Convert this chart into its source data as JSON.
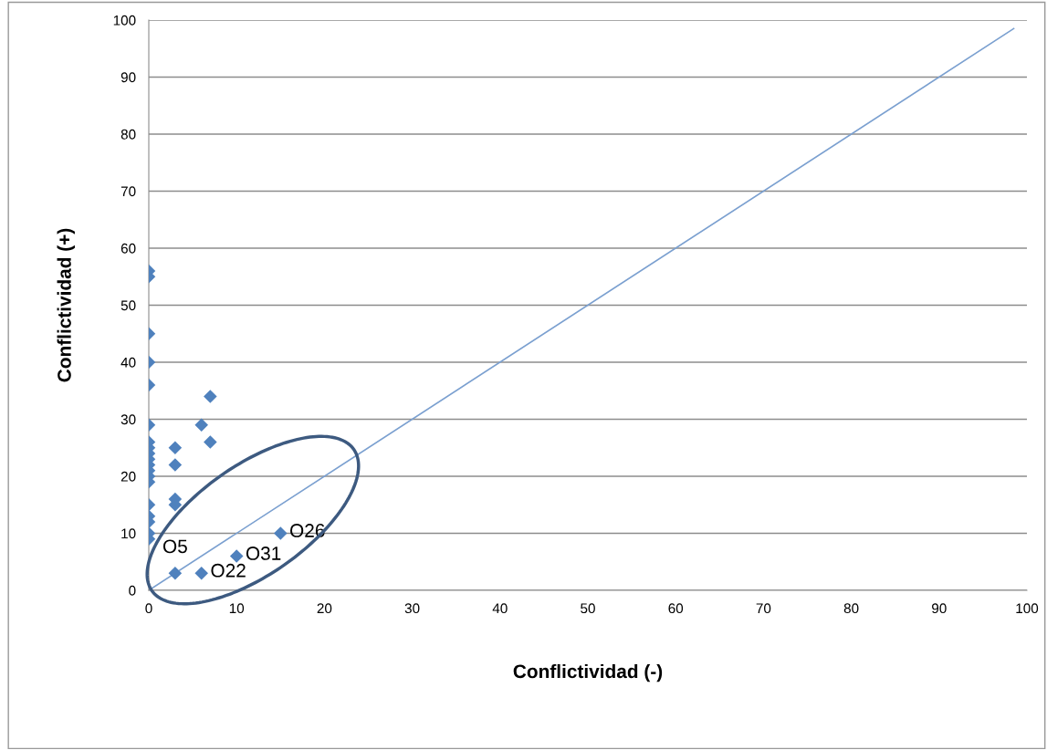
{
  "chart_data": {
    "type": "scatter",
    "xlabel": "Conflictividad (-)",
    "ylabel": "Conflictividad (+)",
    "series": [
      {
        "color": "#4f81bd",
        "marker": "diamond",
        "x": [
          0,
          0,
          0,
          0,
          0,
          0,
          0,
          0,
          0,
          0,
          0,
          0,
          0,
          0,
          0,
          0,
          0,
          0,
          0,
          3,
          3,
          3,
          3,
          3,
          6,
          6,
          7,
          7,
          10,
          15
        ],
        "values": [
          56,
          55,
          45,
          40,
          36,
          29,
          26,
          25,
          24,
          23,
          22,
          21,
          20,
          19,
          15,
          13,
          12,
          10,
          9,
          25,
          22,
          16,
          15,
          3,
          29,
          3,
          34,
          26,
          6,
          10
        ]
      },
      {
        "type": "line",
        "color": "#7ba0d0",
        "marker": "none",
        "x": [
          0,
          98.5
        ],
        "values": [
          0,
          98.5
        ]
      }
    ],
    "annotations": [
      {
        "text": "O5",
        "x": 3,
        "y": 3
      },
      {
        "text": "O22",
        "x": 6,
        "y": 3
      },
      {
        "text": "O31",
        "x": 10,
        "y": 6
      },
      {
        "text": "O26",
        "x": 15,
        "y": 10
      }
    ],
    "xlim": [
      0,
      100
    ],
    "ylim": [
      0,
      100
    ],
    "xticks": [
      0,
      10,
      20,
      30,
      40,
      50,
      60,
      70,
      80,
      90,
      100
    ],
    "yticks": [
      0,
      10,
      20,
      30,
      40,
      50,
      60,
      70,
      80,
      90,
      100
    ],
    "grid": "y",
    "legend": false
  }
}
